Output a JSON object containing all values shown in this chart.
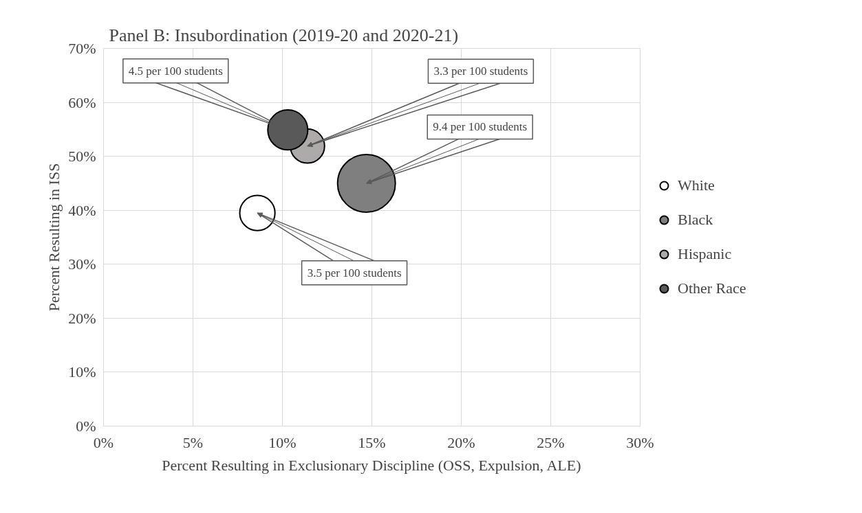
{
  "chart_data": {
    "type": "bubble",
    "title": "Panel B: Insubordination (2019-20 and 2020-21)",
    "xlabel": "Percent Resulting in Exclusionary Discipline (OSS, Expulsion, ALE)",
    "ylabel": "Percent Resulting in ISS",
    "series": [
      {
        "name": "White",
        "color": "#ffffff",
        "x": [
          8.6
        ],
        "values": [
          39.5
        ],
        "sizes": [
          0.372
        ]
      },
      {
        "name": "Black",
        "color": "#7f7f7f",
        "x": [
          14.7
        ],
        "values": [
          45.0
        ],
        "sizes": [
          1.0
        ]
      },
      {
        "name": "Hispanic",
        "color": "#aeaaaa",
        "x": [
          11.4
        ],
        "values": [
          51.9
        ],
        "sizes": [
          0.351
        ]
      },
      {
        "name": "Other Race",
        "color": "#595959",
        "x": [
          10.3
        ],
        "values": [
          54.9
        ],
        "sizes": [
          0.479
        ]
      }
    ],
    "annotations": [
      {
        "text": "4.5 per 100 students",
        "x": 10.3,
        "y": 54.9
      },
      {
        "text": "3.3 per 100 students",
        "x": 11.4,
        "y": 51.9
      },
      {
        "text": "9.4 per 100 students",
        "x": 14.7,
        "y": 45.0
      },
      {
        "text": "3.5 per 100 students",
        "x": 8.6,
        "y": 39.5
      }
    ],
    "xlim": [
      0,
      30
    ],
    "ylim": [
      0,
      70
    ],
    "xticks": [
      {
        "value": 0,
        "label": "0%"
      },
      {
        "value": 5,
        "label": "5%"
      },
      {
        "value": 10,
        "label": "10%"
      },
      {
        "value": 15,
        "label": "15%"
      },
      {
        "value": 20,
        "label": "20%"
      },
      {
        "value": 25,
        "label": "25%"
      },
      {
        "value": 30,
        "label": "30%"
      }
    ],
    "yticks": [
      {
        "value": 0,
        "label": "0%"
      },
      {
        "value": 10,
        "label": "10%"
      },
      {
        "value": 20,
        "label": "20%"
      },
      {
        "value": 30,
        "label": "30%"
      },
      {
        "value": 40,
        "label": "40%"
      },
      {
        "value": 50,
        "label": "50%"
      },
      {
        "value": 60,
        "label": "60%"
      },
      {
        "value": 70,
        "label": "70%"
      }
    ],
    "grid": true,
    "legend": "right"
  }
}
